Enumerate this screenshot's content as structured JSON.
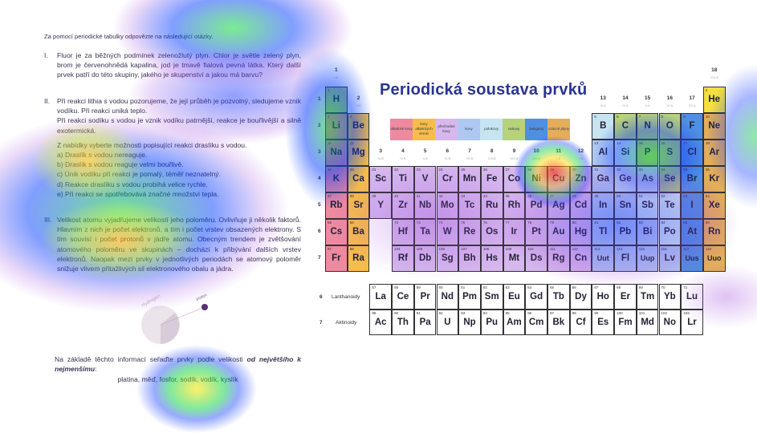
{
  "document": {
    "intro": "Za pomocí periodické tabulky odpovězte na následující otázky.",
    "q1": {
      "num": "I.",
      "text": "Fluor je za běžných podmínek zelenožlutý plyn. Chlor je světle zelený plyn, brom je červenohnědá kapalina, jod je tmavě fialová pevná látka. Který další prvek patří do této skupiny, jakého je skupenství a jakou má barvu?"
    },
    "q2": {
      "num": "II.",
      "text1": "Při reakci lithia s vodou pozorujeme, že její průběh je pozvolný, sledujeme vznik vodíku. Při reakci uniká teplo.",
      "text2": "Při reakci sodíku s vodou je vznik vodíku patrnější, reakce je bouřlivější a silně exotermická.",
      "prompt": "Z nabídky vyberte možnosti popisující reakci draslíku s vodou.",
      "options": [
        "a)  Draslík s vodou nereaguje.",
        "b)  Draslík s vodou reaguje velmi bouřlivě.",
        "c)  Únik vodíku při reakci je pomalý, téměř neznatelný.",
        "d)  Reakce draslíku s vodou probíhá velice rychle.",
        "e)  Při reakci se spotřebovává značné množství tepla."
      ]
    },
    "q3": {
      "num": "III.",
      "text": "Velikost atomu vyjadřujeme velikostí jeho poloměru. Ovlivňuje ji několik faktorů. Hlavním z nich je počet elektronů, a tím i počet vrstev obsazených elektrony. S tím souvisí i počet protonů v jádře atomu. Obecným trendem je zvětšování atomového poloměru ve skupinách – dochází k přibývání dalších vrstev elektronů. Naopak mezi prvky v jednotlivých periodách se atomový poloměr snižuje vlivem přitažlivých sil elektronového obalu a jádra."
    },
    "image_labels": {
      "hydrogen": "Hydrogen",
      "proton": "proton"
    },
    "final": {
      "text": "Na základě těchto informací seřaďte prvky podle velikosti ",
      "emphasis": "od největšího k nejmenšímu",
      "colon": ":",
      "list": "platina, měď, fosfor, sodík, vodík, kyslík"
    }
  },
  "table": {
    "title": "Periodická soustava prvků",
    "legend": [
      {
        "label": "alkalické kovy",
        "color": "#ee8aa0"
      },
      {
        "label": "kovy alkalických zemin",
        "color": "#f7bd4a"
      },
      {
        "label": "přechodné kovy",
        "color": "#d6b8ee"
      },
      {
        "label": "kovy",
        "color": "#aec8f2"
      },
      {
        "label": "polokovy",
        "color": "#c6e4f2"
      },
      {
        "label": "nekovy",
        "color": "#b6d27a"
      },
      {
        "label": "halogeny",
        "color": "#4f8fe2"
      },
      {
        "label": "vzácné plyny",
        "color": "#e4ad5a"
      }
    ],
    "category_colors": {
      "alk": "#ee8aa0",
      "ae": "#f7bd4a",
      "tr": "#d6b8ee",
      "met": "#aec8f2",
      "mtl": "#c6e4f2",
      "non": "#b6d27a",
      "hal": "#4f8fe2",
      "nob": "#e4ad5a",
      "he": "#f5e040",
      "lan": "#ffffff"
    },
    "groups": [
      {
        "g": 1,
        "label": "1",
        "sub": "I.A"
      },
      {
        "g": 2,
        "label": "2",
        "sub": "II.A"
      },
      {
        "g": 3,
        "label": "3",
        "sub": "III.B"
      },
      {
        "g": 4,
        "label": "4",
        "sub": "IV.B"
      },
      {
        "g": 5,
        "label": "5",
        "sub": "V.B"
      },
      {
        "g": 6,
        "label": "6",
        "sub": "VI.B"
      },
      {
        "g": 7,
        "label": "7",
        "sub": "VII.B"
      },
      {
        "g": 8,
        "label": "8",
        "sub": "VIII.B"
      },
      {
        "g": 9,
        "label": "9",
        "sub": "VIII.B"
      },
      {
        "g": 10,
        "label": "10",
        "sub": "VIII.B"
      },
      {
        "g": 11,
        "label": "11",
        "sub": "I.B"
      },
      {
        "g": 12,
        "label": "12",
        "sub": "II.B"
      },
      {
        "g": 13,
        "label": "13",
        "sub": "III.A"
      },
      {
        "g": 14,
        "label": "14",
        "sub": "IV.A"
      },
      {
        "g": 15,
        "label": "15",
        "sub": "V.A"
      },
      {
        "g": 16,
        "label": "16",
        "sub": "VI.A"
      },
      {
        "g": 17,
        "label": "17",
        "sub": "VII.A"
      },
      {
        "g": 18,
        "label": "18",
        "sub": "VIII.A"
      }
    ],
    "periods": [
      "1",
      "2",
      "3",
      "4",
      "5",
      "6",
      "7"
    ],
    "elements": [
      [
        1,
        "H",
        "non",
        1,
        1
      ],
      [
        2,
        "He",
        "he",
        1,
        18
      ],
      [
        3,
        "Li",
        "alk",
        2,
        1
      ],
      [
        4,
        "Be",
        "ae",
        2,
        2
      ],
      [
        5,
        "B",
        "mtl",
        2,
        13
      ],
      [
        6,
        "C",
        "non",
        2,
        14
      ],
      [
        7,
        "N",
        "non",
        2,
        15
      ],
      [
        8,
        "O",
        "non",
        2,
        16
      ],
      [
        9,
        "F",
        "hal",
        2,
        17
      ],
      [
        10,
        "Ne",
        "nob",
        2,
        18
      ],
      [
        11,
        "Na",
        "alk",
        3,
        1
      ],
      [
        12,
        "Mg",
        "ae",
        3,
        2
      ],
      [
        13,
        "Al",
        "met",
        3,
        13
      ],
      [
        14,
        "Si",
        "mtl",
        3,
        14
      ],
      [
        15,
        "P",
        "non",
        3,
        15
      ],
      [
        16,
        "S",
        "non",
        3,
        16
      ],
      [
        17,
        "Cl",
        "hal",
        3,
        17
      ],
      [
        18,
        "Ar",
        "nob",
        3,
        18
      ],
      [
        19,
        "K",
        "alk",
        4,
        1
      ],
      [
        20,
        "Ca",
        "ae",
        4,
        2
      ],
      [
        21,
        "Sc",
        "tr",
        4,
        3
      ],
      [
        22,
        "Ti",
        "tr",
        4,
        4
      ],
      [
        23,
        "V",
        "tr",
        4,
        5
      ],
      [
        24,
        "Cr",
        "tr",
        4,
        6
      ],
      [
        25,
        "Mn",
        "tr",
        4,
        7
      ],
      [
        26,
        "Fe",
        "tr",
        4,
        8
      ],
      [
        27,
        "Co",
        "tr",
        4,
        9
      ],
      [
        28,
        "Ni",
        "tr",
        4,
        10
      ],
      [
        29,
        "Cu",
        "tr",
        4,
        11
      ],
      [
        30,
        "Zn",
        "tr",
        4,
        12
      ],
      [
        31,
        "Ga",
        "met",
        4,
        13
      ],
      [
        32,
        "Ge",
        "mtl",
        4,
        14
      ],
      [
        33,
        "As",
        "mtl",
        4,
        15
      ],
      [
        34,
        "Se",
        "non",
        4,
        16
      ],
      [
        35,
        "Br",
        "hal",
        4,
        17
      ],
      [
        36,
        "Kr",
        "nob",
        4,
        18
      ],
      [
        37,
        "Rb",
        "alk",
        5,
        1
      ],
      [
        38,
        "Sr",
        "ae",
        5,
        2
      ],
      [
        39,
        "Y",
        "tr",
        5,
        3
      ],
      [
        40,
        "Zr",
        "tr",
        5,
        4
      ],
      [
        41,
        "Nb",
        "tr",
        5,
        5
      ],
      [
        42,
        "Mo",
        "tr",
        5,
        6
      ],
      [
        43,
        "Tc",
        "tr",
        5,
        7
      ],
      [
        44,
        "Ru",
        "tr",
        5,
        8
      ],
      [
        45,
        "Rh",
        "tr",
        5,
        9
      ],
      [
        46,
        "Pd",
        "tr",
        5,
        10
      ],
      [
        47,
        "Ag",
        "tr",
        5,
        11
      ],
      [
        48,
        "Cd",
        "tr",
        5,
        12
      ],
      [
        49,
        "In",
        "met",
        5,
        13
      ],
      [
        50,
        "Sn",
        "met",
        5,
        14
      ],
      [
        51,
        "Sb",
        "mtl",
        5,
        15
      ],
      [
        52,
        "Te",
        "mtl",
        5,
        16
      ],
      [
        53,
        "I",
        "hal",
        5,
        17
      ],
      [
        54,
        "Xe",
        "nob",
        5,
        18
      ],
      [
        55,
        "Cs",
        "alk",
        6,
        1
      ],
      [
        56,
        "Ba",
        "ae",
        6,
        2
      ],
      [
        72,
        "Hf",
        "tr",
        6,
        4
      ],
      [
        73,
        "Ta",
        "tr",
        6,
        5
      ],
      [
        74,
        "W",
        "tr",
        6,
        6
      ],
      [
        75,
        "Re",
        "tr",
        6,
        7
      ],
      [
        76,
        "Os",
        "tr",
        6,
        8
      ],
      [
        77,
        "Ir",
        "tr",
        6,
        9
      ],
      [
        78,
        "Pt",
        "tr",
        6,
        10
      ],
      [
        79,
        "Au",
        "tr",
        6,
        11
      ],
      [
        80,
        "Hg",
        "tr",
        6,
        12
      ],
      [
        81,
        "Tl",
        "met",
        6,
        13
      ],
      [
        82,
        "Pb",
        "met",
        6,
        14
      ],
      [
        83,
        "Bi",
        "met",
        6,
        15
      ],
      [
        84,
        "Po",
        "mtl",
        6,
        16
      ],
      [
        85,
        "At",
        "hal",
        6,
        17
      ],
      [
        86,
        "Rn",
        "nob",
        6,
        18
      ],
      [
        87,
        "Fr",
        "alk",
        7,
        1
      ],
      [
        88,
        "Ra",
        "ae",
        7,
        2
      ],
      [
        104,
        "Rf",
        "tr",
        7,
        4
      ],
      [
        105,
        "Db",
        "tr",
        7,
        5
      ],
      [
        106,
        "Sg",
        "tr",
        7,
        6
      ],
      [
        107,
        "Bh",
        "tr",
        7,
        7
      ],
      [
        108,
        "Hs",
        "tr",
        7,
        8
      ],
      [
        109,
        "Mt",
        "tr",
        7,
        9
      ],
      [
        110,
        "Ds",
        "tr",
        7,
        10
      ],
      [
        111,
        "Rg",
        "tr",
        7,
        11
      ],
      [
        112,
        "Cn",
        "tr",
        7,
        12
      ],
      [
        113,
        "Uut",
        "met",
        7,
        13
      ],
      [
        114,
        "Fl",
        "met",
        7,
        14
      ],
      [
        115,
        "Uup",
        "met",
        7,
        15
      ],
      [
        116,
        "Lv",
        "met",
        7,
        16
      ],
      [
        117,
        "Uus",
        "hal",
        7,
        17
      ],
      [
        118,
        "Uuo",
        "nob",
        7,
        18
      ]
    ],
    "lanthanoids": {
      "period": "6",
      "label": "Lanthanoidy",
      "elements": [
        [
          57,
          "La"
        ],
        [
          58,
          "Ce"
        ],
        [
          59,
          "Pr"
        ],
        [
          60,
          "Nd"
        ],
        [
          61,
          "Pm"
        ],
        [
          62,
          "Sm"
        ],
        [
          63,
          "Eu"
        ],
        [
          64,
          "Gd"
        ],
        [
          65,
          "Tb"
        ],
        [
          66,
          "Dy"
        ],
        [
          67,
          "Ho"
        ],
        [
          68,
          "Er"
        ],
        [
          69,
          "Tm"
        ],
        [
          70,
          "Yb"
        ],
        [
          71,
          "Lu"
        ]
      ]
    },
    "actinoids": {
      "period": "7",
      "label": "Aktinoidy",
      "elements": [
        [
          89,
          "Ac"
        ],
        [
          90,
          "Th"
        ],
        [
          91,
          "Pa"
        ],
        [
          92,
          "U"
        ],
        [
          93,
          "Np"
        ],
        [
          94,
          "Pu"
        ],
        [
          95,
          "Am"
        ],
        [
          96,
          "Cm"
        ],
        [
          97,
          "Bk"
        ],
        [
          98,
          "Cf"
        ],
        [
          99,
          "Es"
        ],
        [
          100,
          "Fm"
        ],
        [
          101,
          "Md"
        ],
        [
          102,
          "No"
        ],
        [
          103,
          "Lr"
        ]
      ]
    }
  }
}
